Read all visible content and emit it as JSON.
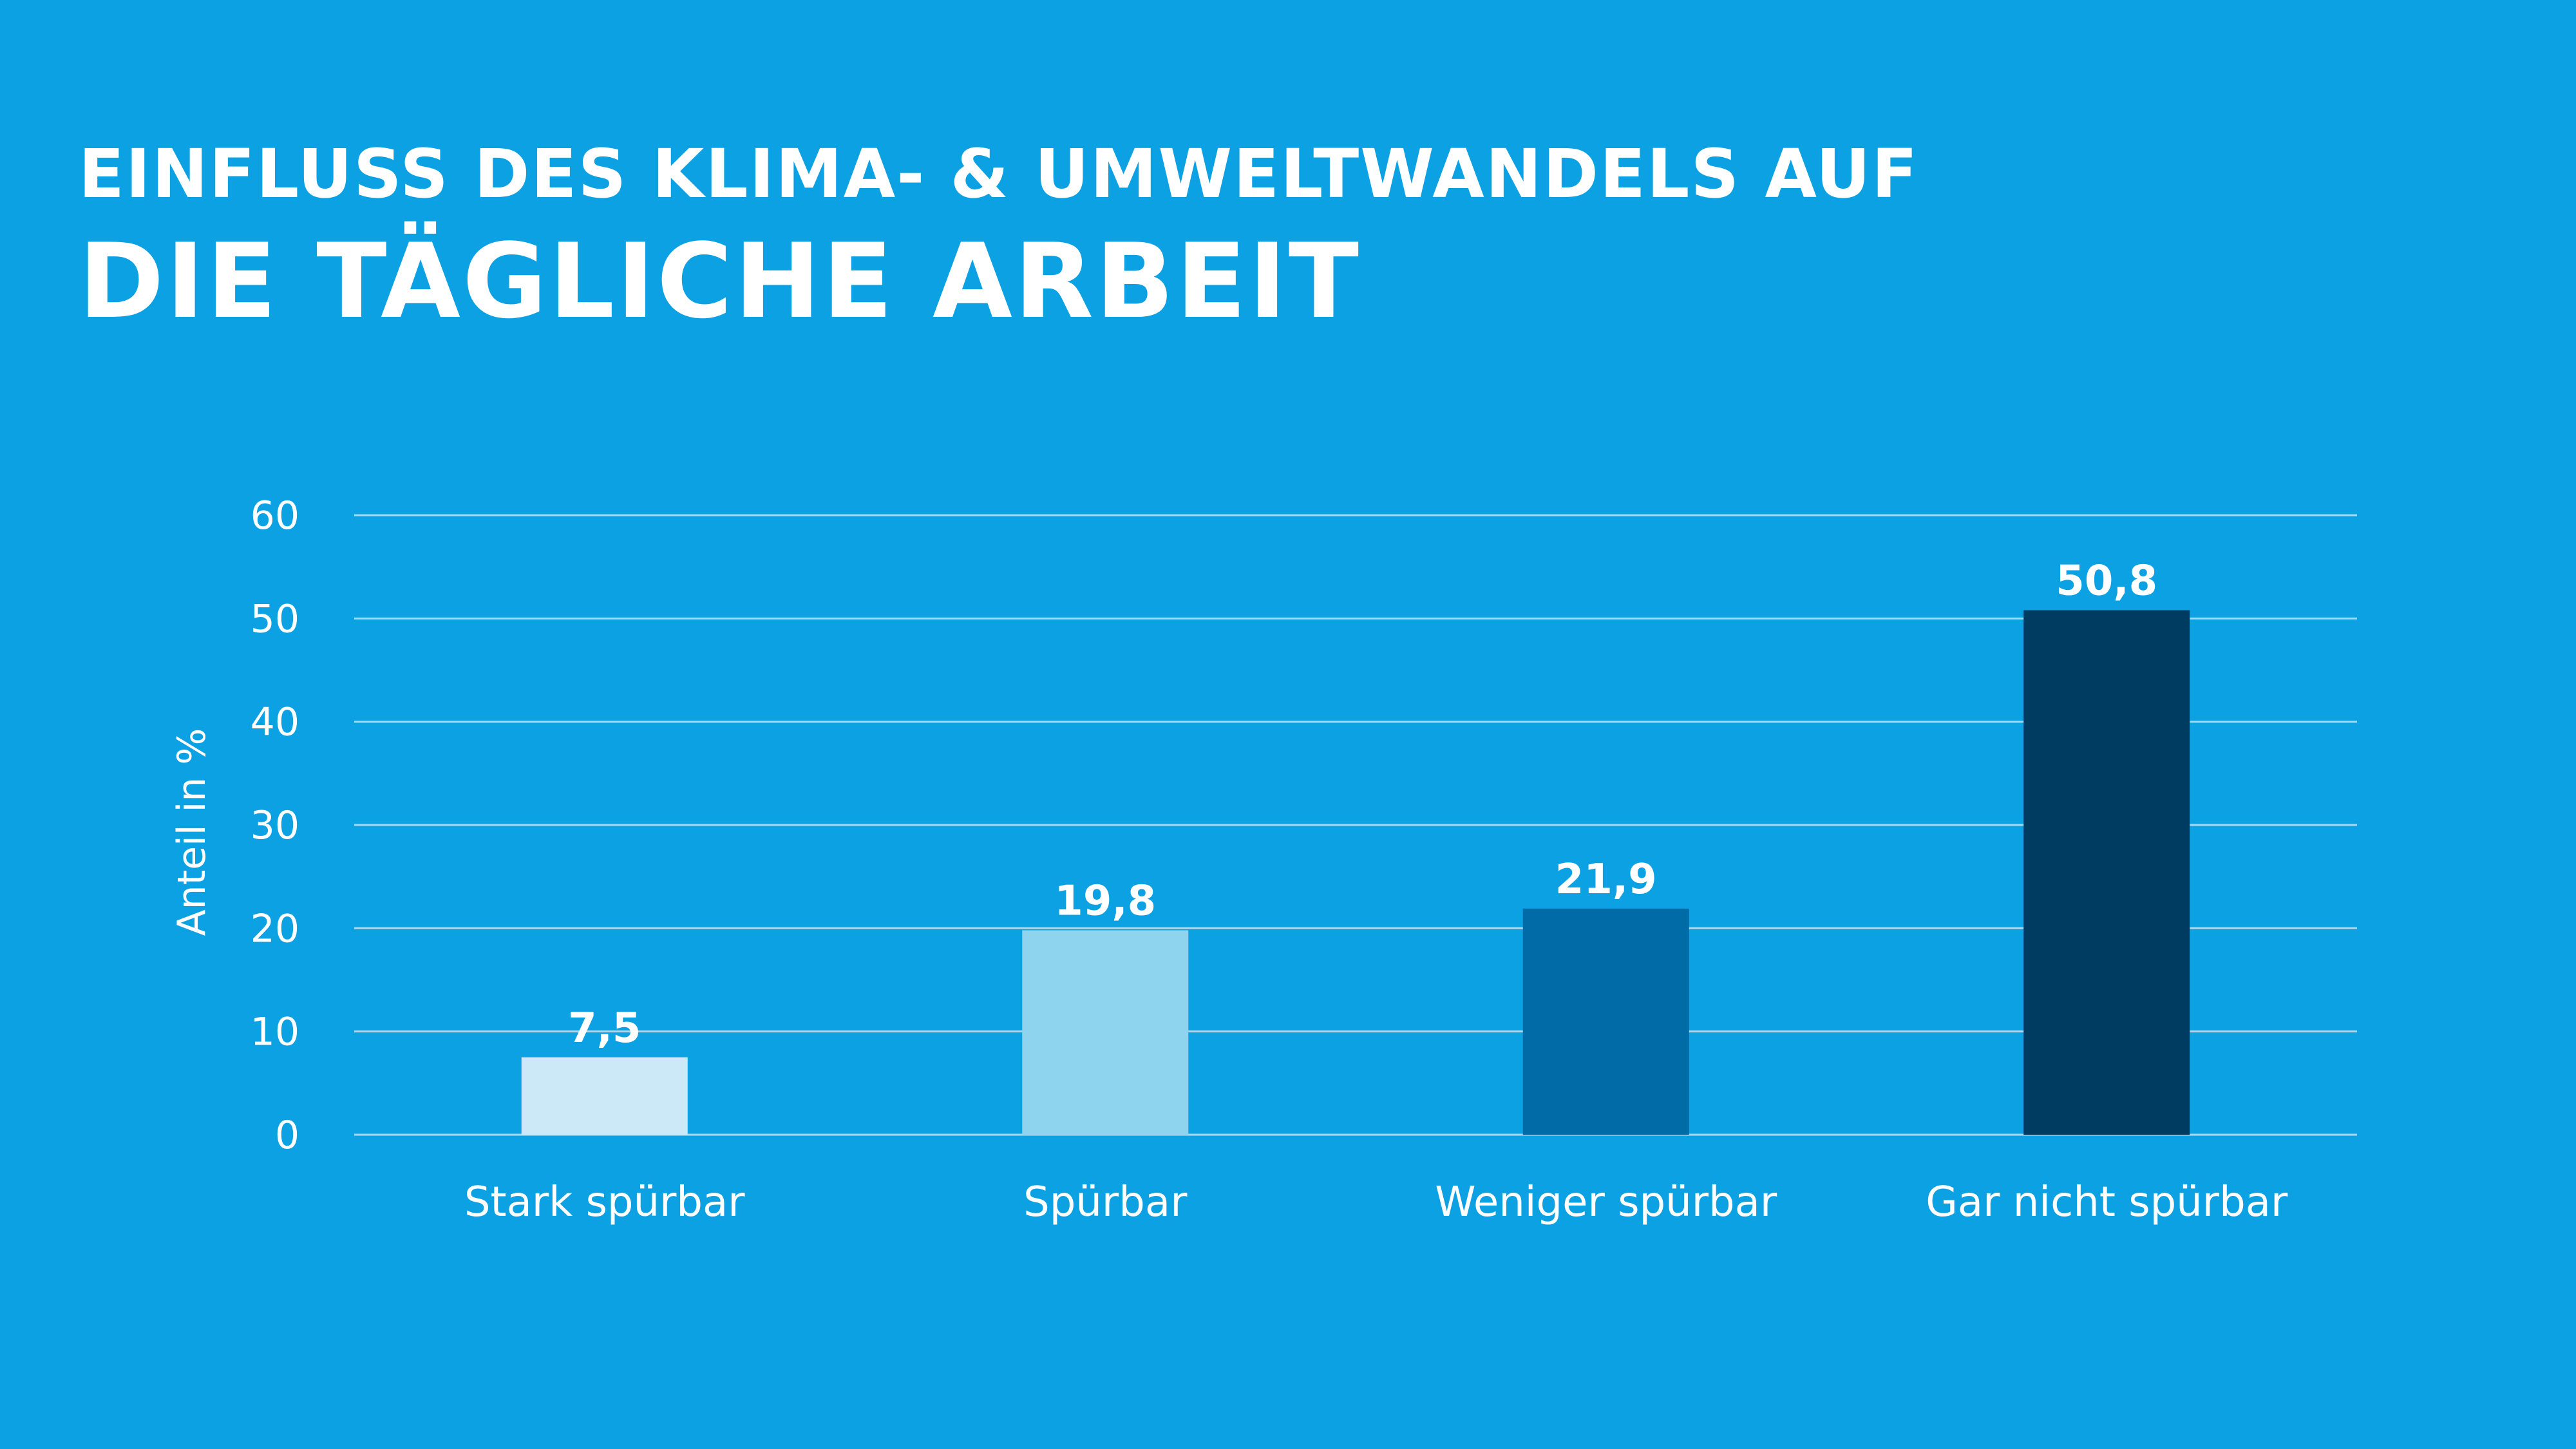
{
  "title": {
    "line1": "Einfluss des Klima- & Umweltwandels auf",
    "line2": "die tägliche Arbeit"
  },
  "colors": {
    "background": "#0ca1e3",
    "grid": "#a7d9f3",
    "text": "#ffffff"
  },
  "chart_data": {
    "type": "bar",
    "title": "Einfluss des Klima- & Umweltwandels auf die tägliche Arbeit",
    "xlabel": "",
    "ylabel": "Anteil in %",
    "ylim": [
      0,
      60
    ],
    "yticks": [
      0,
      10,
      20,
      30,
      40,
      50,
      60
    ],
    "grid": true,
    "categories": [
      "Stark spürbar",
      "Spürbar",
      "Weniger spürbar",
      "Gar nicht spürbar"
    ],
    "values": [
      7.5,
      19.8,
      21.9,
      50.8
    ],
    "value_labels": [
      "7,5",
      "19,8",
      "21,9",
      "50,8"
    ],
    "bar_colors": [
      "#cbe9f7",
      "#8fd4ee",
      "#006ba6",
      "#003b62"
    ]
  }
}
